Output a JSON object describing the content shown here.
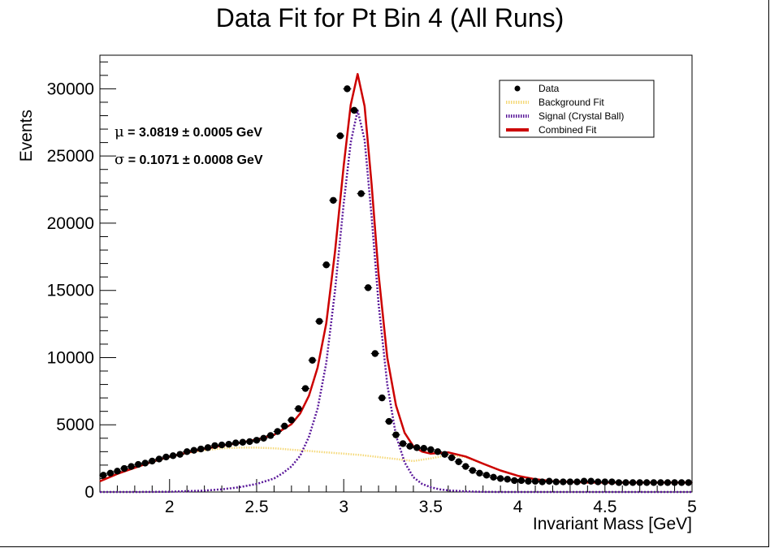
{
  "chart_data": {
    "type": "scatter",
    "title": "Data Fit for Pt Bin 4 (All Runs)",
    "xlabel": "Invariant Mass [GeV]",
    "ylabel": "Events",
    "xlim": [
      1.6,
      5.0
    ],
    "ylim": [
      0,
      32500
    ],
    "x_ticks": [
      2,
      2.5,
      3,
      3.5,
      4,
      4.5,
      5
    ],
    "y_ticks": [
      0,
      5000,
      10000,
      15000,
      20000,
      25000,
      30000
    ],
    "grid": false,
    "legend_position": "top-right",
    "legend": [
      {
        "label": "Data",
        "color": "#000000",
        "style": "marker"
      },
      {
        "label": "Background Fit",
        "color": "#f5d97a",
        "style": "dotted"
      },
      {
        "label": "Signal (Crystal Ball)",
        "color": "#5a189a",
        "style": "dotted"
      },
      {
        "label": "Combined Fit",
        "color": "#cc0000",
        "style": "solid"
      }
    ],
    "annotations": [
      {
        "symbol": "μ",
        "text": " = 3.0819 ± 0.0005 GeV"
      },
      {
        "symbol": "σ",
        "text": " = 0.1071 ± 0.0008 GeV"
      }
    ],
    "series": [
      {
        "name": "Data",
        "x": [
          1.62,
          1.66,
          1.7,
          1.74,
          1.78,
          1.82,
          1.86,
          1.9,
          1.94,
          1.98,
          2.02,
          2.06,
          2.1,
          2.14,
          2.18,
          2.22,
          2.26,
          2.3,
          2.34,
          2.38,
          2.42,
          2.46,
          2.5,
          2.54,
          2.58,
          2.62,
          2.66,
          2.7,
          2.74,
          2.78,
          2.82,
          2.86,
          2.9,
          2.94,
          2.98,
          3.02,
          3.06,
          3.1,
          3.14,
          3.18,
          3.22,
          3.26,
          3.3,
          3.34,
          3.38,
          3.42,
          3.46,
          3.5,
          3.54,
          3.58,
          3.62,
          3.66,
          3.7,
          3.74,
          3.78,
          3.82,
          3.86,
          3.9,
          3.94,
          3.98,
          4.02,
          4.06,
          4.1,
          4.14,
          4.18,
          4.22,
          4.26,
          4.3,
          4.34,
          4.38,
          4.42,
          4.46,
          4.5,
          4.54,
          4.58,
          4.62,
          4.66,
          4.7,
          4.74,
          4.78,
          4.82,
          4.86,
          4.9,
          4.94,
          4.98
        ],
        "y": [
          1250,
          1400,
          1550,
          1750,
          1900,
          2050,
          2150,
          2300,
          2450,
          2600,
          2700,
          2800,
          3000,
          3100,
          3200,
          3300,
          3450,
          3500,
          3550,
          3650,
          3700,
          3750,
          3850,
          4000,
          4200,
          4500,
          4900,
          5350,
          6200,
          7700,
          9800,
          12700,
          16900,
          21700,
          26500,
          30000,
          28400,
          22200,
          15200,
          10300,
          7000,
          5250,
          4250,
          3600,
          3400,
          3300,
          3250,
          3150,
          3000,
          2800,
          2550,
          2250,
          1900,
          1600,
          1400,
          1250,
          1100,
          1000,
          950,
          850,
          850,
          800,
          800,
          750,
          800,
          750,
          750,
          750,
          750,
          800,
          800,
          750,
          750,
          750,
          700,
          700,
          700,
          700,
          700,
          700,
          700,
          700,
          700,
          700,
          700
        ]
      },
      {
        "name": "Background Fit",
        "x": [
          1.6,
          1.7,
          1.8,
          1.9,
          2.0,
          2.1,
          2.2,
          2.3,
          2.4,
          2.5,
          2.6,
          2.7,
          2.8,
          2.9,
          3.0,
          3.1,
          3.2,
          3.3,
          3.4,
          3.5,
          3.6,
          3.7,
          3.8,
          3.9,
          4.0,
          4.1,
          4.2,
          4.3,
          4.4,
          4.5,
          4.6,
          4.7,
          4.8,
          4.9,
          5.0
        ],
        "y": [
          800,
          1350,
          1800,
          2250,
          2600,
          2900,
          3100,
          3250,
          3300,
          3300,
          3250,
          3150,
          3050,
          2950,
          2850,
          2750,
          2600,
          2450,
          2300,
          2500,
          2750,
          2600,
          2100,
          1600,
          1200,
          950,
          800,
          750,
          700,
          700,
          700,
          700,
          700,
          700,
          700
        ]
      },
      {
        "name": "Signal (Crystal Ball)",
        "x": [
          1.6,
          1.8,
          2.0,
          2.2,
          2.3,
          2.4,
          2.5,
          2.6,
          2.65,
          2.7,
          2.75,
          2.8,
          2.85,
          2.9,
          2.95,
          3.0,
          3.04,
          3.08,
          3.12,
          3.16,
          3.2,
          3.25,
          3.3,
          3.35,
          3.4,
          3.45,
          3.5,
          3.55,
          3.6,
          3.7,
          3.8,
          3.9,
          4.0,
          5.0
        ],
        "y": [
          0,
          0,
          20,
          100,
          200,
          350,
          600,
          1000,
          1400,
          1900,
          2700,
          4100,
          6200,
          9600,
          15000,
          21500,
          26000,
          28400,
          26200,
          20500,
          14000,
          8000,
          4200,
          2200,
          1100,
          600,
          350,
          200,
          120,
          40,
          10,
          0,
          0,
          0
        ]
      },
      {
        "name": "Combined Fit",
        "x": [
          1.6,
          1.7,
          1.8,
          1.9,
          2.0,
          2.1,
          2.2,
          2.3,
          2.4,
          2.5,
          2.6,
          2.65,
          2.7,
          2.75,
          2.8,
          2.85,
          2.9,
          2.95,
          3.0,
          3.04,
          3.08,
          3.12,
          3.16,
          3.2,
          3.25,
          3.3,
          3.35,
          3.4,
          3.45,
          3.5,
          3.55,
          3.6,
          3.7,
          3.8,
          3.9,
          4.0,
          4.1,
          4.2,
          4.3,
          4.4,
          4.5,
          4.6,
          4.7,
          4.8,
          4.9,
          5.0
        ],
        "y": [
          800,
          1350,
          1800,
          2250,
          2620,
          2930,
          3200,
          3450,
          3650,
          3900,
          4250,
          4650,
          5050,
          5850,
          7150,
          9250,
          12550,
          17900,
          24300,
          28800,
          31100,
          28700,
          22900,
          16200,
          10000,
          6450,
          4400,
          3400,
          3000,
          2850,
          2900,
          2950,
          2640,
          2110,
          1600,
          1200,
          950,
          800,
          750,
          700,
          700,
          700,
          700,
          700,
          700,
          700
        ]
      }
    ]
  }
}
